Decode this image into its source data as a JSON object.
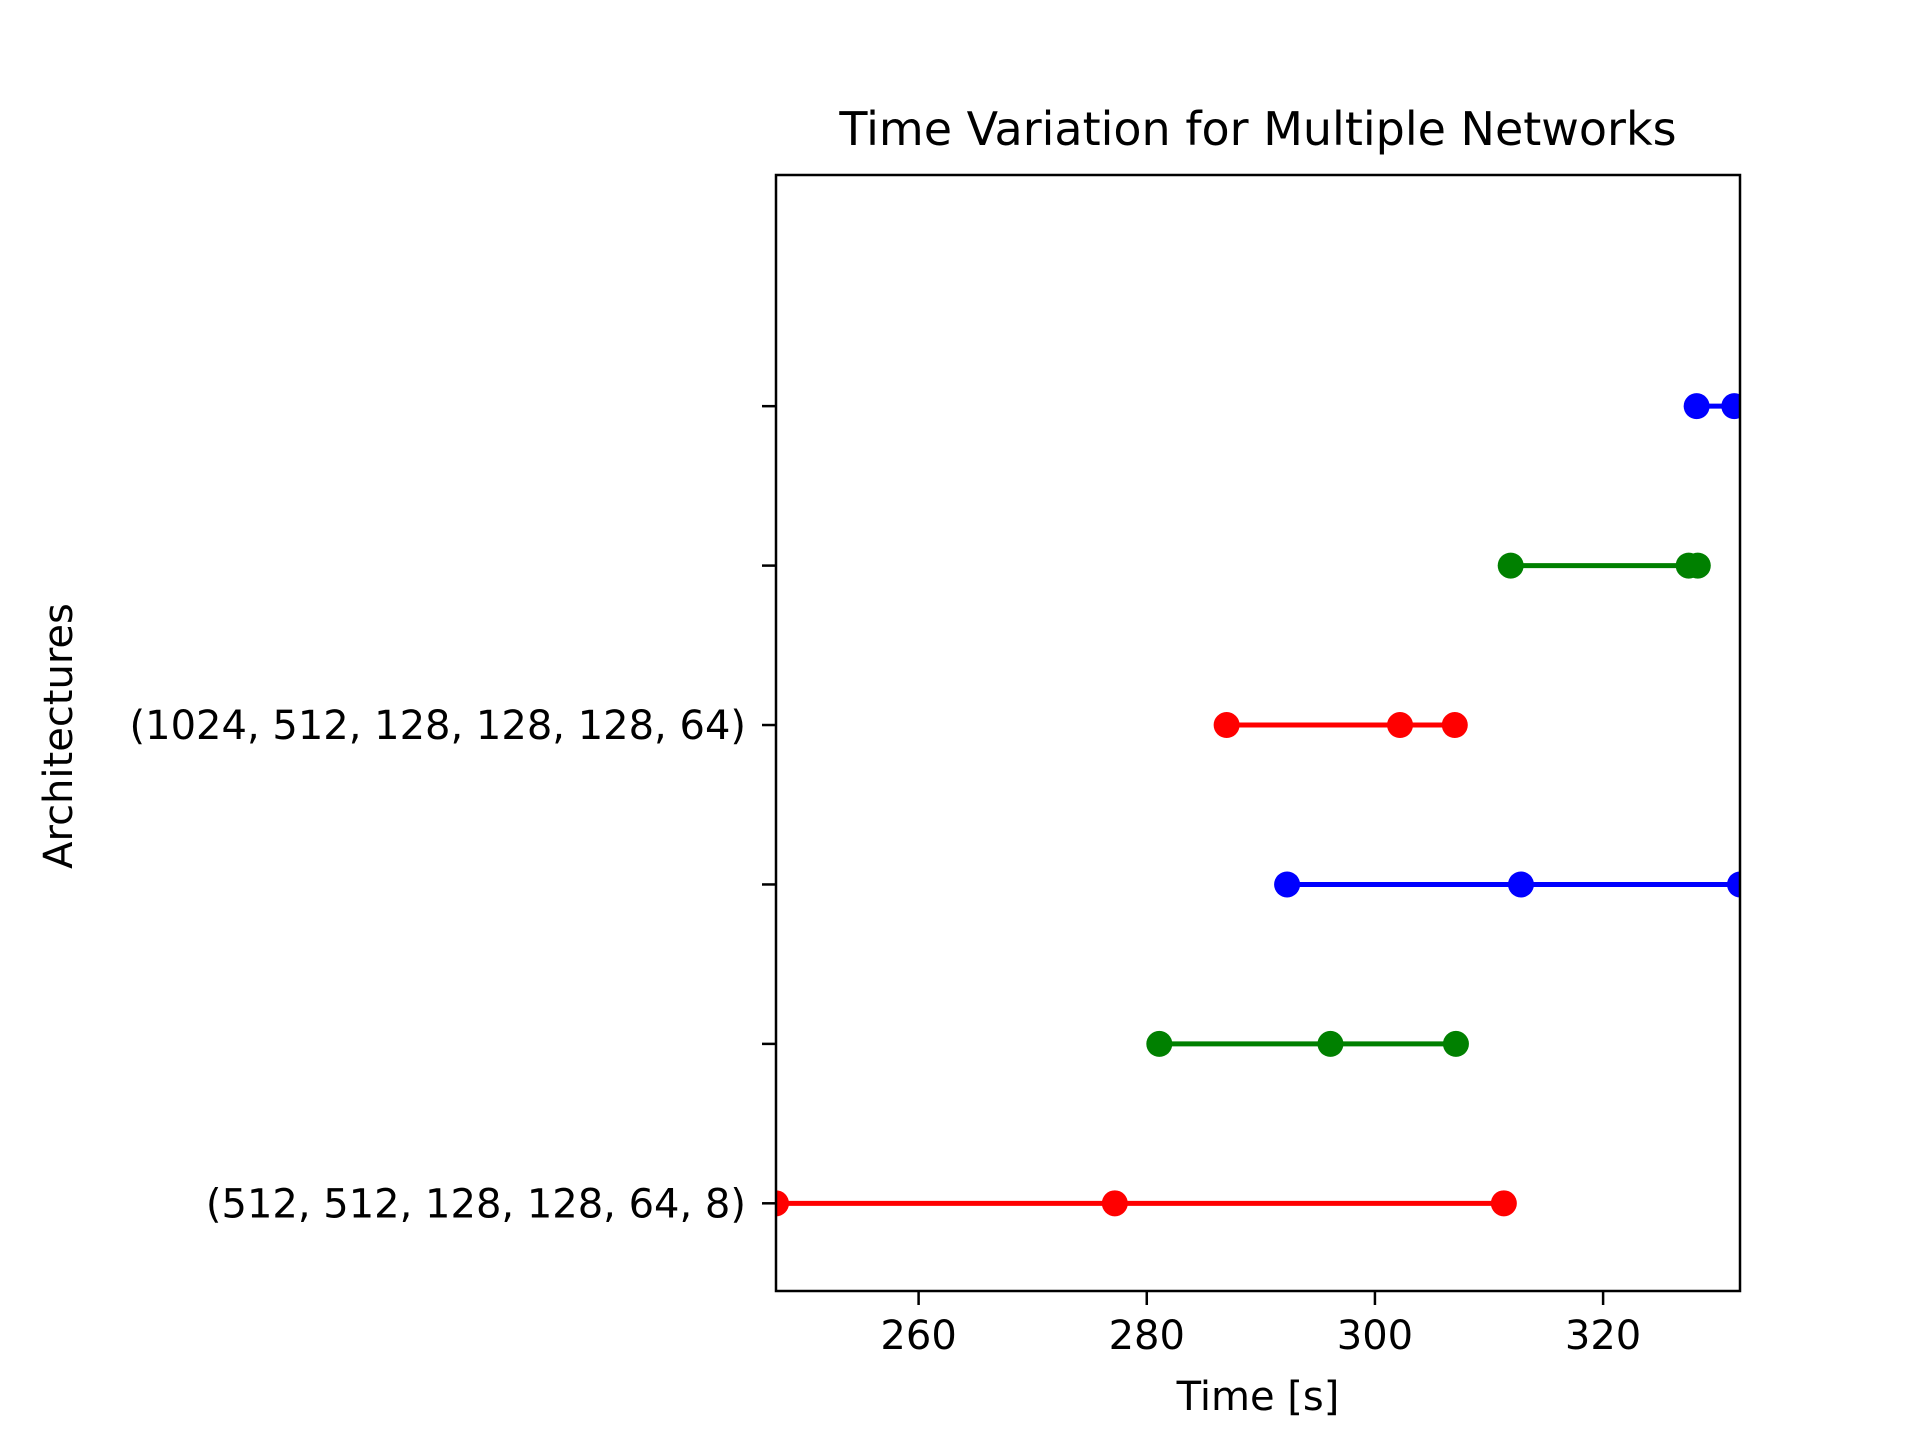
{
  "chart_data": {
    "type": "line",
    "title": "Time Variation for Multiple Networks",
    "xlabel": "Time [s]",
    "ylabel": "Architectures",
    "xlim": [
      247.5,
      332.0
    ],
    "ylim": [
      -0.55,
      6.45
    ],
    "x_ticks": [
      260,
      280,
      300,
      320
    ],
    "y_ticks": [
      {
        "pos": 0,
        "label": "(512, 512, 128, 128, 64, 8)"
      },
      {
        "pos": 1,
        "label": ""
      },
      {
        "pos": 2,
        "label": ""
      },
      {
        "pos": 3,
        "label": "(1024, 512, 128, 128, 128, 64)"
      },
      {
        "pos": 4,
        "label": ""
      },
      {
        "pos": 5,
        "label": ""
      }
    ],
    "grid": false,
    "series": [
      {
        "row": 0,
        "color": "#ff0000",
        "x": [
          247.5,
          277.2,
          311.3
        ]
      },
      {
        "row": 1,
        "color": "#008000",
        "x": [
          281.1,
          296.1,
          307.1
        ]
      },
      {
        "row": 2,
        "color": "#0000ff",
        "x": [
          292.3,
          312.8,
          332.0
        ]
      },
      {
        "row": 3,
        "color": "#ff0000",
        "x": [
          287.0,
          302.2,
          307.0
        ]
      },
      {
        "row": 4,
        "color": "#008000",
        "x": [
          311.9,
          327.5,
          328.3
        ]
      },
      {
        "row": 5,
        "color": "#0000ff",
        "x": [
          328.2,
          331.5
        ]
      }
    ]
  }
}
